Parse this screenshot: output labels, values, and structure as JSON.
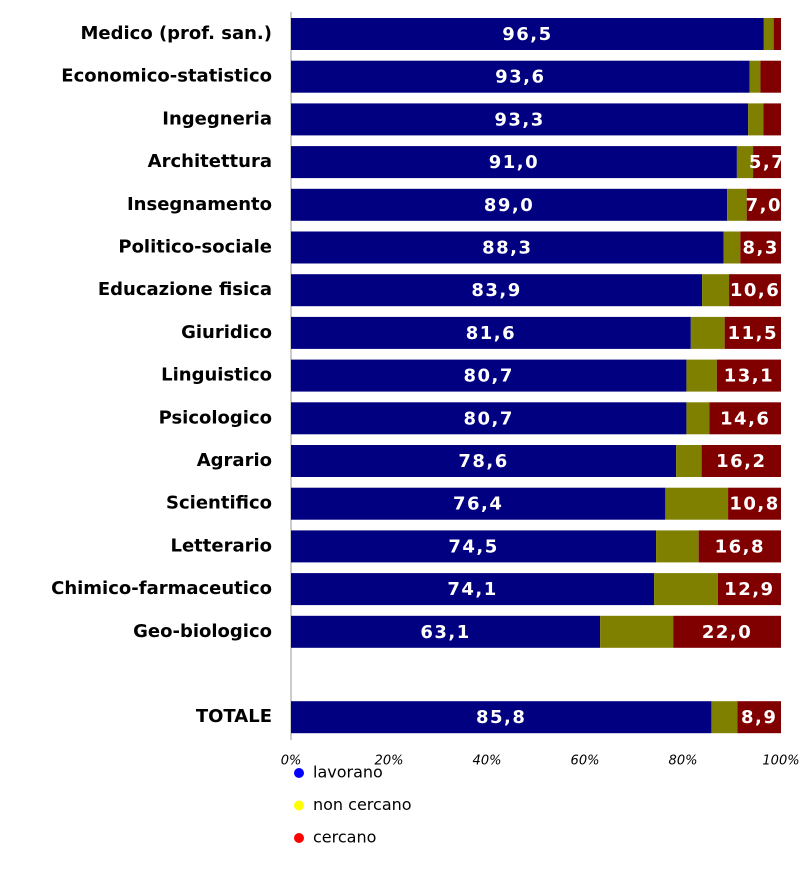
{
  "chart_data": {
    "type": "stacked-barh",
    "categories": [
      "Medico (prof. san.)",
      "Economico-statistico",
      "Ingegneria",
      "Architettura",
      "Insegnamento",
      "Politico-sociale",
      "Educazione fisica",
      "Giuridico",
      "Linguistico",
      "Psicologico",
      "Agrario",
      "Scientifico",
      "Letterario",
      "Chimico-farmaceutico",
      "Geo-biologico",
      null,
      "TOTALE"
    ],
    "series": [
      {
        "name": "lavorano",
        "color": "#000080",
        "values": [
          96.5,
          93.6,
          93.3,
          91.0,
          89.0,
          88.3,
          83.9,
          81.6,
          80.7,
          80.7,
          78.6,
          76.4,
          74.5,
          74.1,
          63.1,
          null,
          85.8
        ],
        "value_labels": [
          "96,5",
          "93,6",
          "93,3",
          "91,0",
          "89,0",
          "88,3",
          "83,9",
          "81,6",
          "80,7",
          "80,7",
          "78,6",
          "76,4",
          "74,5",
          "74,1",
          "63,1",
          null,
          "85,8"
        ]
      },
      {
        "name": "non cercano",
        "color": "#7f7f00",
        "values": [
          2.0,
          2.2,
          3.1,
          3.3,
          4.0,
          3.4,
          5.5,
          6.9,
          6.2,
          4.7,
          5.2,
          12.8,
          8.7,
          13.0,
          14.9,
          null,
          5.3
        ]
      },
      {
        "name": "cercano",
        "color": "#800000",
        "values": [
          1.5,
          4.2,
          3.6,
          5.7,
          7.0,
          8.3,
          10.6,
          11.5,
          13.1,
          14.6,
          16.2,
          10.8,
          16.8,
          12.9,
          22.0,
          null,
          8.9
        ],
        "value_labels": [
          null,
          null,
          null,
          "5,7",
          "7,0",
          "8,3",
          "10,6",
          "11,5",
          "13,1",
          "14,6",
          "16,2",
          "10,8",
          "16,8",
          "12,9",
          "22,0",
          null,
          "8,9"
        ]
      }
    ],
    "legend_colors": [
      "#0000ff",
      "#ffff00",
      "#ff0000"
    ],
    "xlim": [
      0,
      100
    ],
    "xticks": [
      {
        "value": 0,
        "label": "0%"
      },
      {
        "value": 20,
        "label": "20%"
      },
      {
        "value": 40,
        "label": "40%"
      },
      {
        "value": 60,
        "label": "60%"
      },
      {
        "value": 80,
        "label": "80%"
      },
      {
        "value": 100,
        "label": "100%"
      }
    ]
  }
}
